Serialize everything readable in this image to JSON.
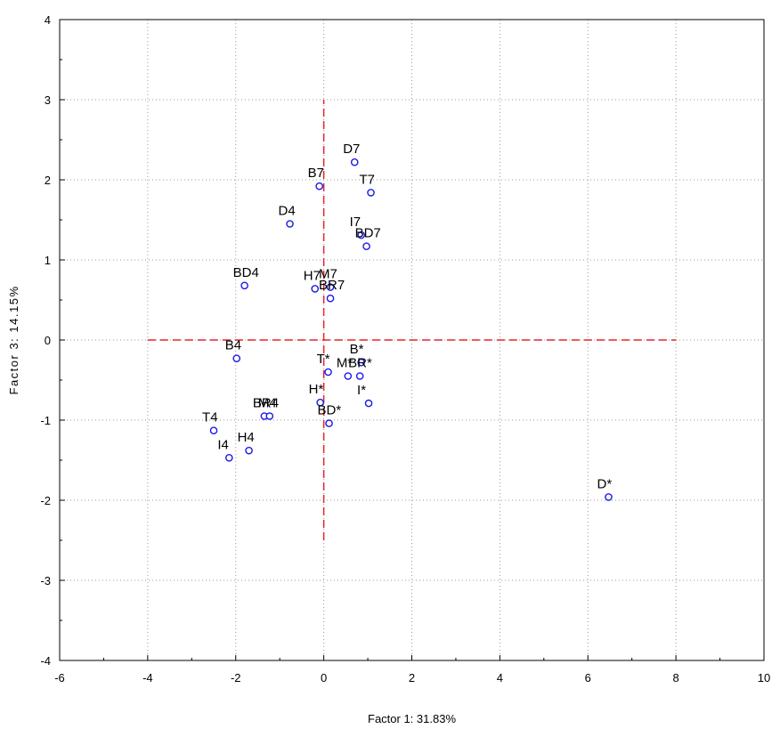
{
  "chart_data": {
    "type": "scatter",
    "xlabel": "Factor 1: 31.83%",
    "ylabel": "Factor 3: 14.15%",
    "xlim": [
      -6,
      10
    ],
    "ylim": [
      -4,
      4
    ],
    "x_ticks": [
      -6,
      -4,
      -2,
      0,
      2,
      4,
      6,
      8,
      10
    ],
    "y_ticks": [
      -4,
      -3,
      -2,
      -1,
      0,
      1,
      2,
      3,
      4
    ],
    "x_tick_labels": [
      "-6",
      "-4",
      "-2",
      "0",
      "2",
      "4",
      "6",
      "8",
      "10"
    ],
    "y_tick_labels": [
      "-4",
      "-3",
      "-2",
      "-1",
      "0",
      "1",
      "2",
      "3",
      "4"
    ],
    "grid": true,
    "reference_lines": {
      "color": "#e8232a",
      "style": "dashed",
      "horizontal": {
        "y": 0,
        "x_from": -4,
        "x_to": 8
      },
      "vertical": {
        "x": 0,
        "y_from": -2.5,
        "y_to": 3
      }
    },
    "marker_color": "#1a1ae6",
    "points": [
      {
        "label": "D7",
        "x": 0.7,
        "y": 2.22
      },
      {
        "label": "T7",
        "x": 1.07,
        "y": 1.84
      },
      {
        "label": "B7",
        "x": -0.1,
        "y": 1.92
      },
      {
        "label": "D4",
        "x": -0.77,
        "y": 1.45
      },
      {
        "label": "I7",
        "x": 0.85,
        "y": 1.31
      },
      {
        "label": "BD7",
        "x": 0.97,
        "y": 1.17
      },
      {
        "label": "BD4",
        "x": -1.8,
        "y": 0.68
      },
      {
        "label": "H7",
        "x": -0.2,
        "y": 0.64
      },
      {
        "label": "M7",
        "x": 0.15,
        "y": 0.66
      },
      {
        "label": "BR7",
        "x": 0.15,
        "y": 0.52
      },
      {
        "label": "B4",
        "x": -1.98,
        "y": -0.23
      },
      {
        "label": "B*",
        "x": 0.85,
        "y": -0.28
      },
      {
        "label": "T*",
        "x": 0.1,
        "y": -0.4
      },
      {
        "label": "M*",
        "x": 0.55,
        "y": -0.45
      },
      {
        "label": "BR*",
        "x": 0.82,
        "y": -0.45
      },
      {
        "label": "H*",
        "x": -0.08,
        "y": -0.78
      },
      {
        "label": "I*",
        "x": 1.02,
        "y": -0.79
      },
      {
        "label": "BR4",
        "x": -1.35,
        "y": -0.95
      },
      {
        "label": "M4",
        "x": -1.23,
        "y": -0.95
      },
      {
        "label": "BD*",
        "x": 0.12,
        "y": -1.04
      },
      {
        "label": "T4",
        "x": -2.5,
        "y": -1.13
      },
      {
        "label": "H4",
        "x": -1.7,
        "y": -1.38
      },
      {
        "label": "I4",
        "x": -2.15,
        "y": -1.47
      },
      {
        "label": "D*",
        "x": 6.47,
        "y": -1.96
      }
    ]
  }
}
